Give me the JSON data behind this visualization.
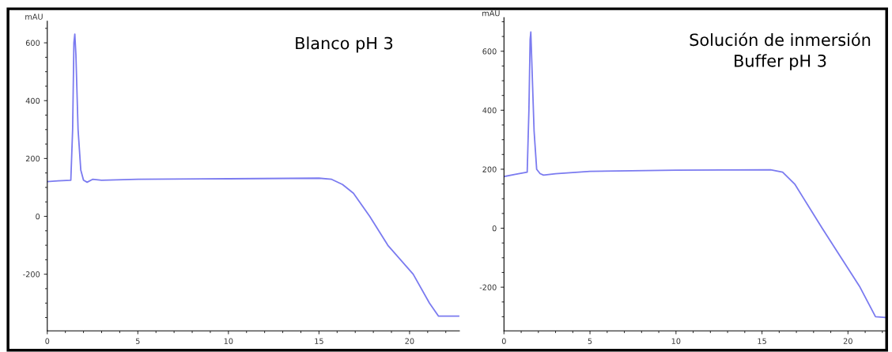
{
  "chart_data": [
    {
      "type": "line",
      "title": "Blanco pH 3",
      "ylabel": "mAU",
      "x": [
        0,
        0.6,
        1.3,
        1.4,
        1.47,
        1.52,
        1.58,
        1.7,
        1.85,
        2.0,
        2.2,
        2.5,
        3,
        5,
        10,
        15,
        15.7,
        16.3,
        16.9,
        17.8,
        18.8,
        20.2,
        21.1,
        21.6,
        22.75
      ],
      "series": [
        {
          "color": "#7b7bf0",
          "values": [
            120,
            123,
            125,
            300,
            600,
            630,
            560,
            300,
            160,
            125,
            118,
            128,
            125,
            128,
            130,
            132,
            128,
            110,
            80,
            0,
            -100,
            -200,
            -300,
            -345,
            -345
          ]
        }
      ],
      "xlim": [
        0,
        22.75
      ],
      "ylim": [
        -396,
        675
      ],
      "xticks": [
        0,
        5,
        10,
        15,
        20
      ],
      "yticks": [
        -200,
        0,
        200,
        400,
        600
      ],
      "grid": false,
      "line_style": "solid",
      "marker": "none"
    },
    {
      "type": "line",
      "title": "Solución de inmersión\nBuffer pH 3",
      "ylabel": "mAU",
      "x": [
        0,
        0.6,
        1.35,
        1.45,
        1.52,
        1.56,
        1.62,
        1.75,
        1.9,
        2.1,
        2.3,
        3,
        5,
        10,
        15.5,
        16.2,
        16.9,
        18.5,
        19.6,
        20.7,
        21.6,
        22.3
      ],
      "series": [
        {
          "color": "#7b7bf0",
          "values": [
            175,
            182,
            190,
            400,
            640,
            665,
            560,
            330,
            200,
            185,
            180,
            185,
            193,
            197,
            198,
            190,
            150,
            0,
            -100,
            -200,
            -300,
            -303
          ]
        }
      ],
      "xlim": [
        0,
        22.3
      ],
      "ylim": [
        -348,
        714
      ],
      "xticks": [
        0,
        5,
        10,
        15,
        20
      ],
      "yticks": [
        -200,
        0,
        200,
        400,
        600
      ],
      "grid": false,
      "line_style": "solid",
      "marker": "none"
    }
  ]
}
